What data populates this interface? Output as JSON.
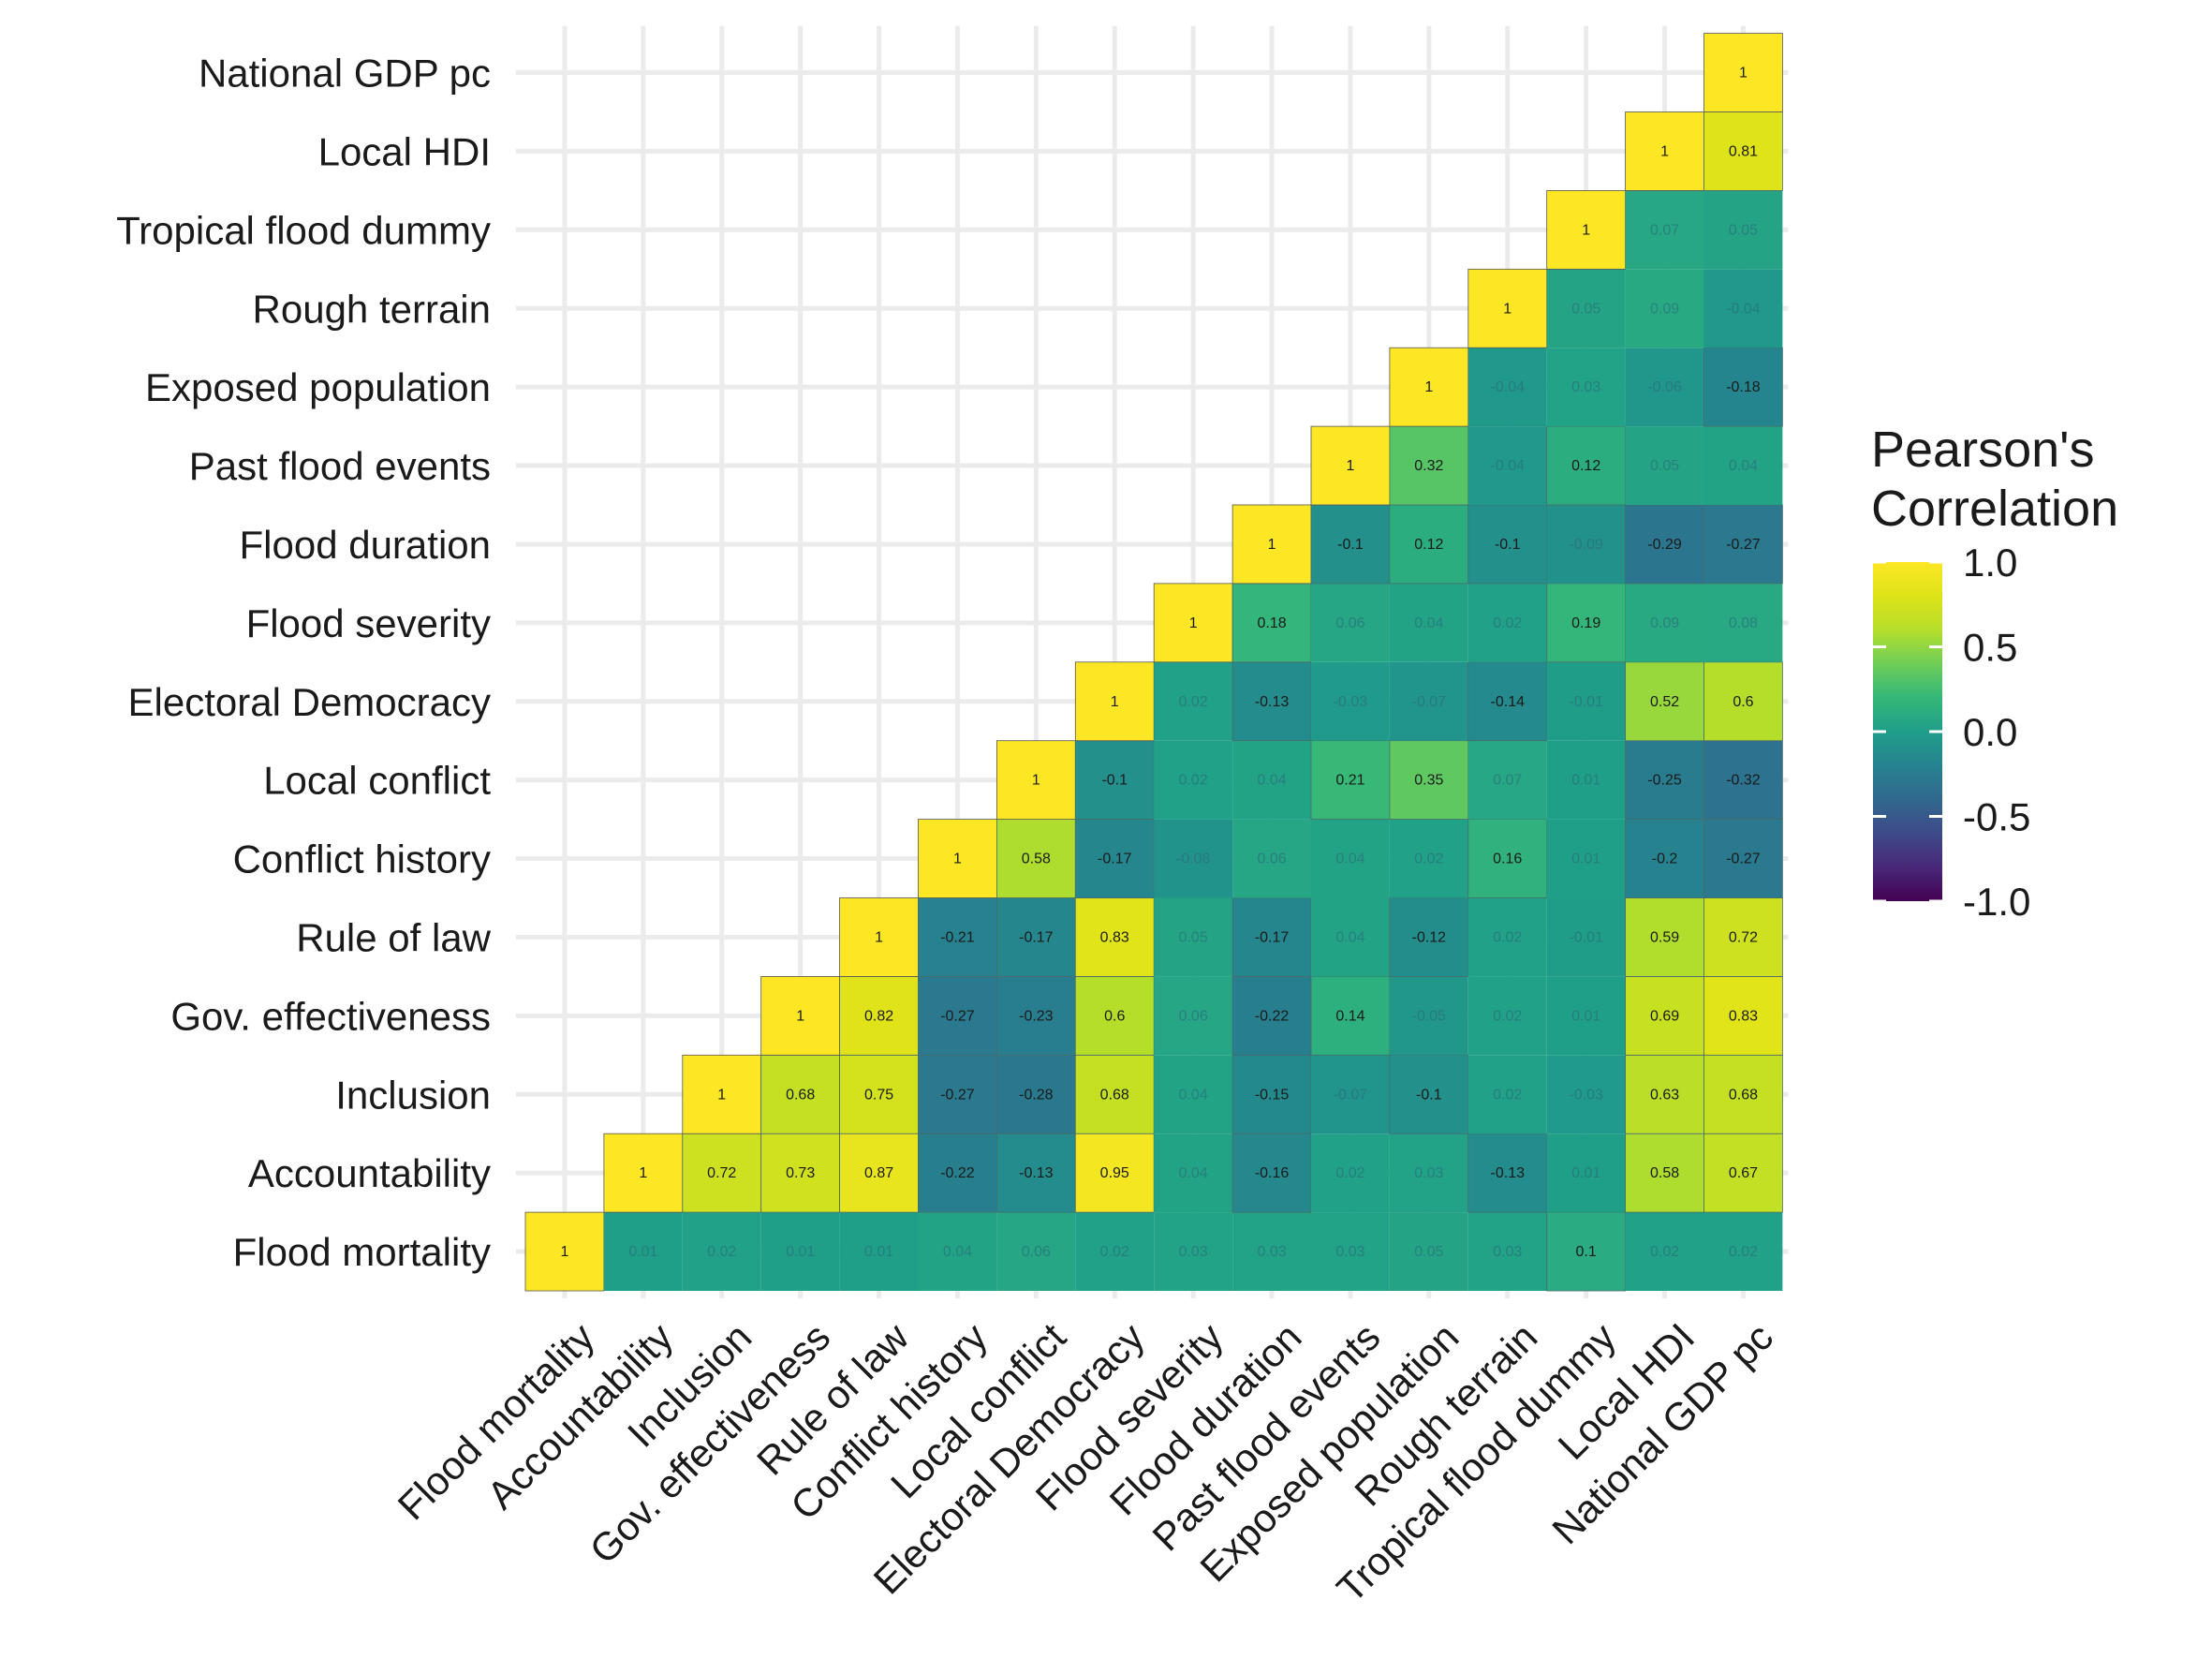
{
  "chart_data": {
    "type": "heatmap",
    "variables": [
      "Flood mortality",
      "Accountability",
      "Inclusion",
      "Gov. effectiveness",
      "Rule of law",
      "Conflict history",
      "Local conflict",
      "Electoral Democracy",
      "Flood severity",
      "Flood duration",
      "Past flood events",
      "Exposed population",
      "Rough terrain",
      "Tropical flood dummy",
      "Local HDI",
      "National GDP pc"
    ],
    "matrix": [
      [
        1,
        0.01,
        0.02,
        0.01,
        0.01,
        0.04,
        0.06,
        0.02,
        0.03,
        0.03,
        0.03,
        0.05,
        0.03,
        0.1,
        0.02,
        0.02
      ],
      [
        null,
        1,
        0.72,
        0.73,
        0.87,
        -0.22,
        -0.13,
        0.95,
        0.04,
        -0.16,
        0.02,
        0.03,
        -0.13,
        0.01,
        0.58,
        0.67
      ],
      [
        null,
        null,
        1,
        0.68,
        0.75,
        -0.27,
        -0.28,
        0.68,
        0.04,
        -0.15,
        -0.07,
        -0.1,
        0.02,
        -0.03,
        0.63,
        0.68
      ],
      [
        null,
        null,
        null,
        1,
        0.82,
        -0.27,
        -0.23,
        0.6,
        0.06,
        -0.22,
        0.14,
        -0.05,
        0.02,
        0.01,
        0.69,
        0.83
      ],
      [
        null,
        null,
        null,
        null,
        1,
        -0.21,
        -0.17,
        0.83,
        0.05,
        -0.17,
        0.04,
        -0.12,
        0.02,
        -0.01,
        0.59,
        0.72
      ],
      [
        null,
        null,
        null,
        null,
        null,
        1,
        0.58,
        -0.17,
        -0.08,
        0.06,
        0.04,
        0.02,
        0.16,
        0.01,
        -0.2,
        -0.27
      ],
      [
        null,
        null,
        null,
        null,
        null,
        null,
        1,
        -0.1,
        0.02,
        0.04,
        0.21,
        0.35,
        0.07,
        0.01,
        -0.25,
        -0.32
      ],
      [
        null,
        null,
        null,
        null,
        null,
        null,
        null,
        1,
        0.02,
        -0.13,
        -0.03,
        -0.07,
        -0.14,
        -0.01,
        0.52,
        0.6
      ],
      [
        null,
        null,
        null,
        null,
        null,
        null,
        null,
        null,
        1,
        0.18,
        0.06,
        0.04,
        0.02,
        0.19,
        0.09,
        0.08
      ],
      [
        null,
        null,
        null,
        null,
        null,
        null,
        null,
        null,
        null,
        1,
        -0.1,
        0.12,
        -0.1,
        -0.09,
        -0.29,
        -0.27
      ],
      [
        null,
        null,
        null,
        null,
        null,
        null,
        null,
        null,
        null,
        null,
        1,
        0.32,
        -0.04,
        0.12,
        0.05,
        0.04
      ],
      [
        null,
        null,
        null,
        null,
        null,
        null,
        null,
        null,
        null,
        null,
        null,
        1,
        -0.04,
        0.03,
        -0.06,
        -0.18
      ],
      [
        null,
        null,
        null,
        null,
        null,
        null,
        null,
        null,
        null,
        null,
        null,
        null,
        1,
        0.05,
        0.09,
        -0.04
      ],
      [
        null,
        null,
        null,
        null,
        null,
        null,
        null,
        null,
        null,
        null,
        null,
        null,
        null,
        1,
        0.07,
        0.05
      ],
      [
        null,
        null,
        null,
        null,
        null,
        null,
        null,
        null,
        null,
        null,
        null,
        null,
        null,
        null,
        1,
        0.81
      ],
      [
        null,
        null,
        null,
        null,
        null,
        null,
        null,
        null,
        null,
        null,
        null,
        null,
        null,
        null,
        null,
        1
      ]
    ],
    "color_scale": "viridis",
    "colors": {
      "low": "#440154",
      "mid": "#21908c",
      "high": "#fde725"
    },
    "value_range": [
      -1,
      1
    ],
    "legend": {
      "title": [
        "Pearson's",
        "Correlation"
      ],
      "ticks": [
        "1.0",
        "0.5",
        "0.0",
        "-0.5",
        "-1.0"
      ],
      "placement": "right"
    },
    "grid": true
  }
}
